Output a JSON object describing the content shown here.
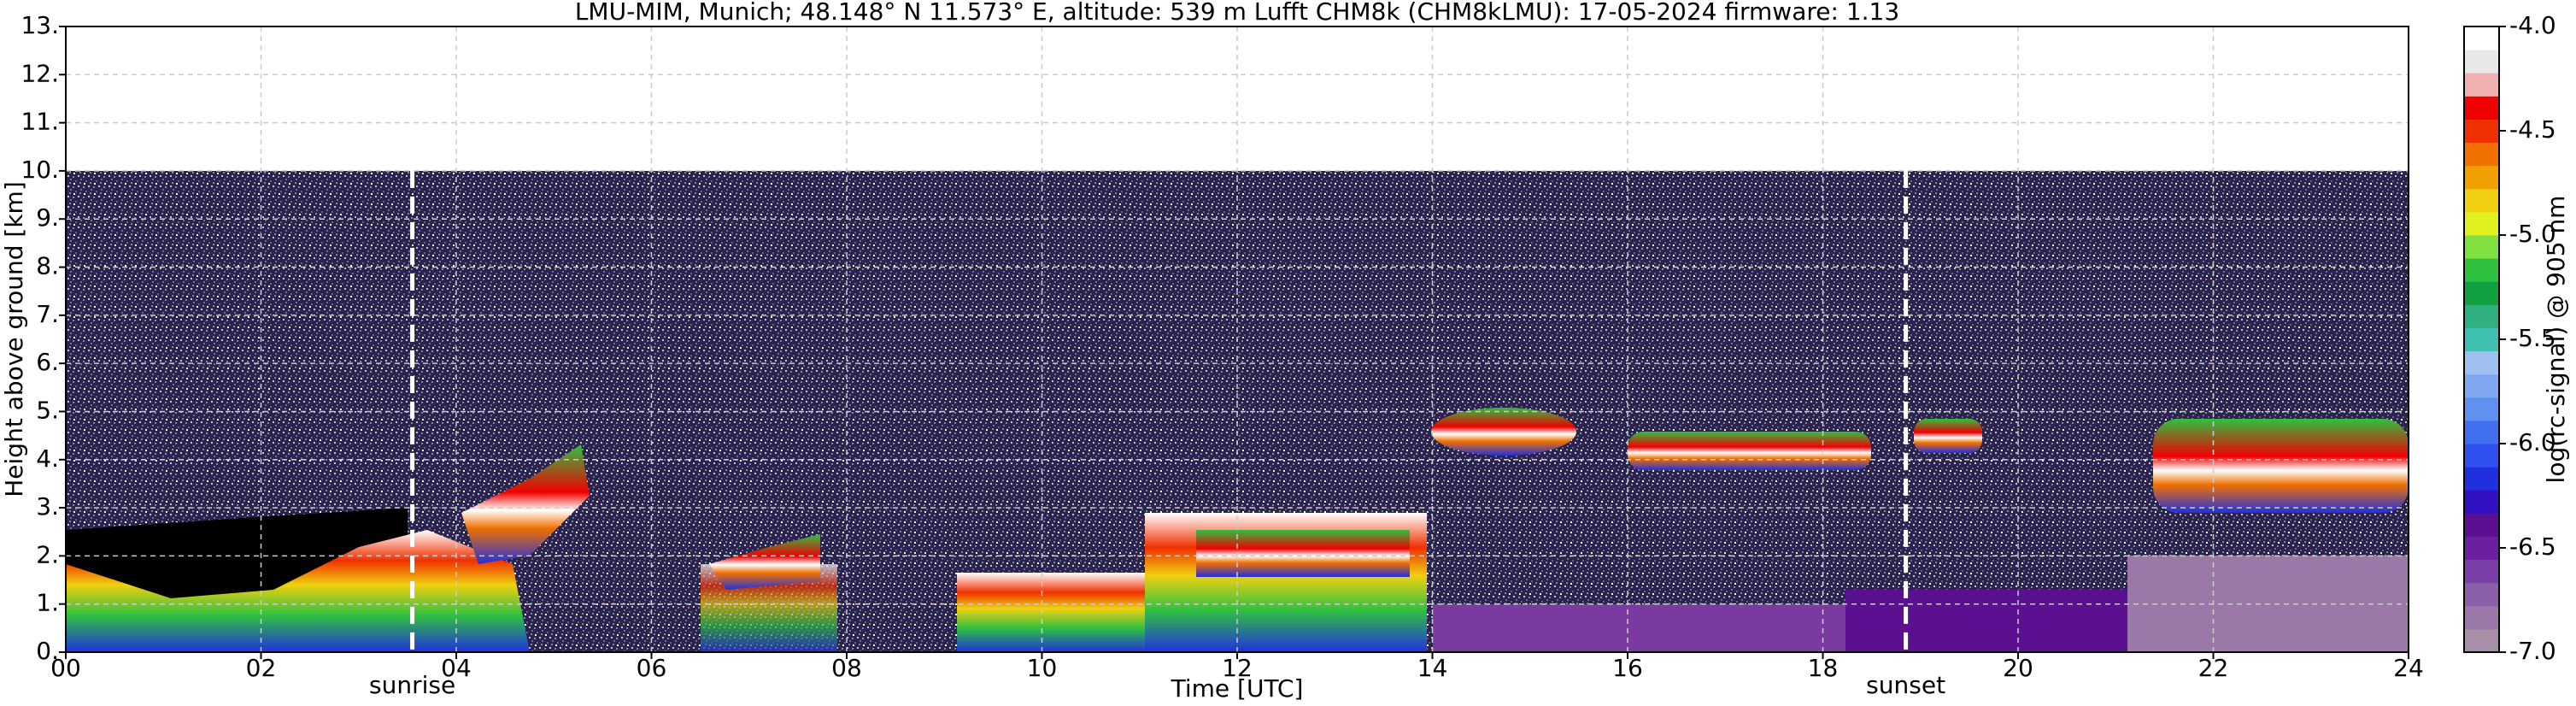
{
  "chart_data": {
    "type": "heatmap",
    "title": "LMU-MIM, Munich; 48.148° N 11.573° E, altitude: 539 m    Lufft CHM8k (CHM8kLMU): 17-05-2024    firmware: 1.13",
    "xlabel": "Time [UTC]",
    "ylabel": "Height above ground [km]",
    "xlim": [
      0,
      24
    ],
    "xticks": [
      {
        "value": 0,
        "label": "00"
      },
      {
        "value": 2,
        "label": "02"
      },
      {
        "value": 4,
        "label": "04"
      },
      {
        "value": 6,
        "label": "06"
      },
      {
        "value": 8,
        "label": "08"
      },
      10,
      12,
      14,
      16,
      18,
      20,
      22,
      24
    ],
    "ylim": [
      0,
      13
    ],
    "yticks": [
      {
        "value": 0,
        "label": "0."
      },
      {
        "value": 1,
        "label": "1."
      },
      {
        "value": 2,
        "label": "2."
      },
      {
        "value": 3,
        "label": "3."
      },
      {
        "value": 4,
        "label": "4."
      },
      {
        "value": 5,
        "label": "5."
      },
      {
        "value": 6,
        "label": "6."
      },
      {
        "value": 7,
        "label": "7."
      },
      {
        "value": 8,
        "label": "8."
      },
      {
        "value": 9,
        "label": "9."
      },
      {
        "value": 10,
        "label": "10."
      },
      {
        "value": 11,
        "label": "11."
      },
      {
        "value": 12,
        "label": "12."
      },
      {
        "value": 13,
        "label": "13."
      }
    ],
    "grid": true,
    "colorbar": {
      "label": "log(rc-signal) @ 905 nm",
      "clim": [
        -7,
        -4
      ],
      "ticks": [
        {
          "value": -4.0,
          "label": "-4.0"
        },
        -4.5,
        {
          "value": -5.0,
          "label": "-5.0"
        },
        -5.5,
        {
          "value": -6.0,
          "label": "-6.0"
        },
        -6.5,
        {
          "value": -7.0,
          "label": "-7.0"
        }
      ],
      "colormap": [
        "#a890a8",
        "#9a78a8",
        "#8a60a8",
        "#7a40a8",
        "#6a20a0",
        "#5a1090",
        "#3010c0",
        "#2030e0",
        "#3050f0",
        "#4070f0",
        "#6090f0",
        "#80a8f0",
        "#a0c0f0",
        "#40c0b0",
        "#30b080",
        "#10a040",
        "#30c040",
        "#80e040",
        "#e0f020",
        "#f0d010",
        "#f0a000",
        "#f07000",
        "#f03000",
        "#f00000",
        "#f0b0b0",
        "#e8e8e8",
        "#ffffff"
      ]
    },
    "annotations": [
      {
        "x": 3.55,
        "label": "sunrise"
      },
      {
        "x": 18.85,
        "label": "sunset"
      }
    ]
  }
}
